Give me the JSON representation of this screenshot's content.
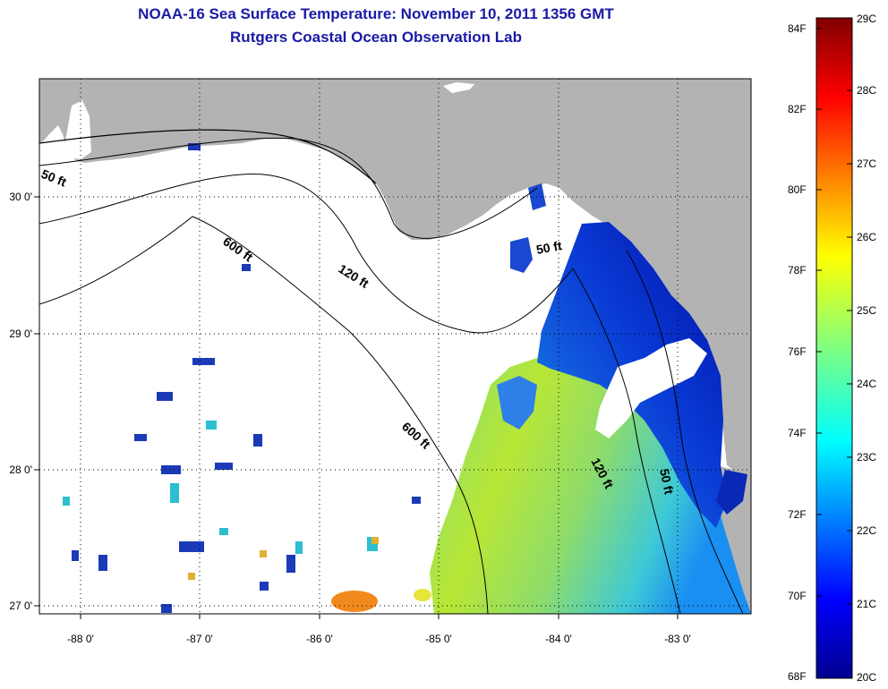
{
  "title_line1": "NOAA-16 Sea Surface Temperature:  November 10, 2011 1356 GMT",
  "title_line2": "Rutgers Coastal Ocean Observation Lab",
  "x_ticks": [
    "-88 0'",
    "-87 0'",
    "-86 0'",
    "-85 0'",
    "-84 0'",
    "-83 0'"
  ],
  "y_ticks": [
    "30 0'",
    "29 0'",
    "28 0'",
    "27 0'"
  ],
  "contours": [
    {
      "label": "50 ft"
    },
    {
      "label": "50 ft"
    },
    {
      "label": "50 ft"
    },
    {
      "label": "120 ft"
    },
    {
      "label": "120 ft"
    },
    {
      "label": "600 ft"
    },
    {
      "label": "600 ft"
    }
  ],
  "colorbar": {
    "fahrenheit": [
      "84F",
      "82F",
      "80F",
      "78F",
      "76F",
      "74F",
      "72F",
      "70F",
      "68F"
    ],
    "celsius": [
      "29C",
      "28C",
      "27C",
      "26C",
      "25C",
      "24C",
      "23C",
      "22C",
      "21C",
      "20C"
    ],
    "min_c": 20,
    "max_c": 29
  },
  "colors": {
    "land": "#b3b3b3",
    "no_data": "#ffffff",
    "title": "#1a1aa6"
  }
}
